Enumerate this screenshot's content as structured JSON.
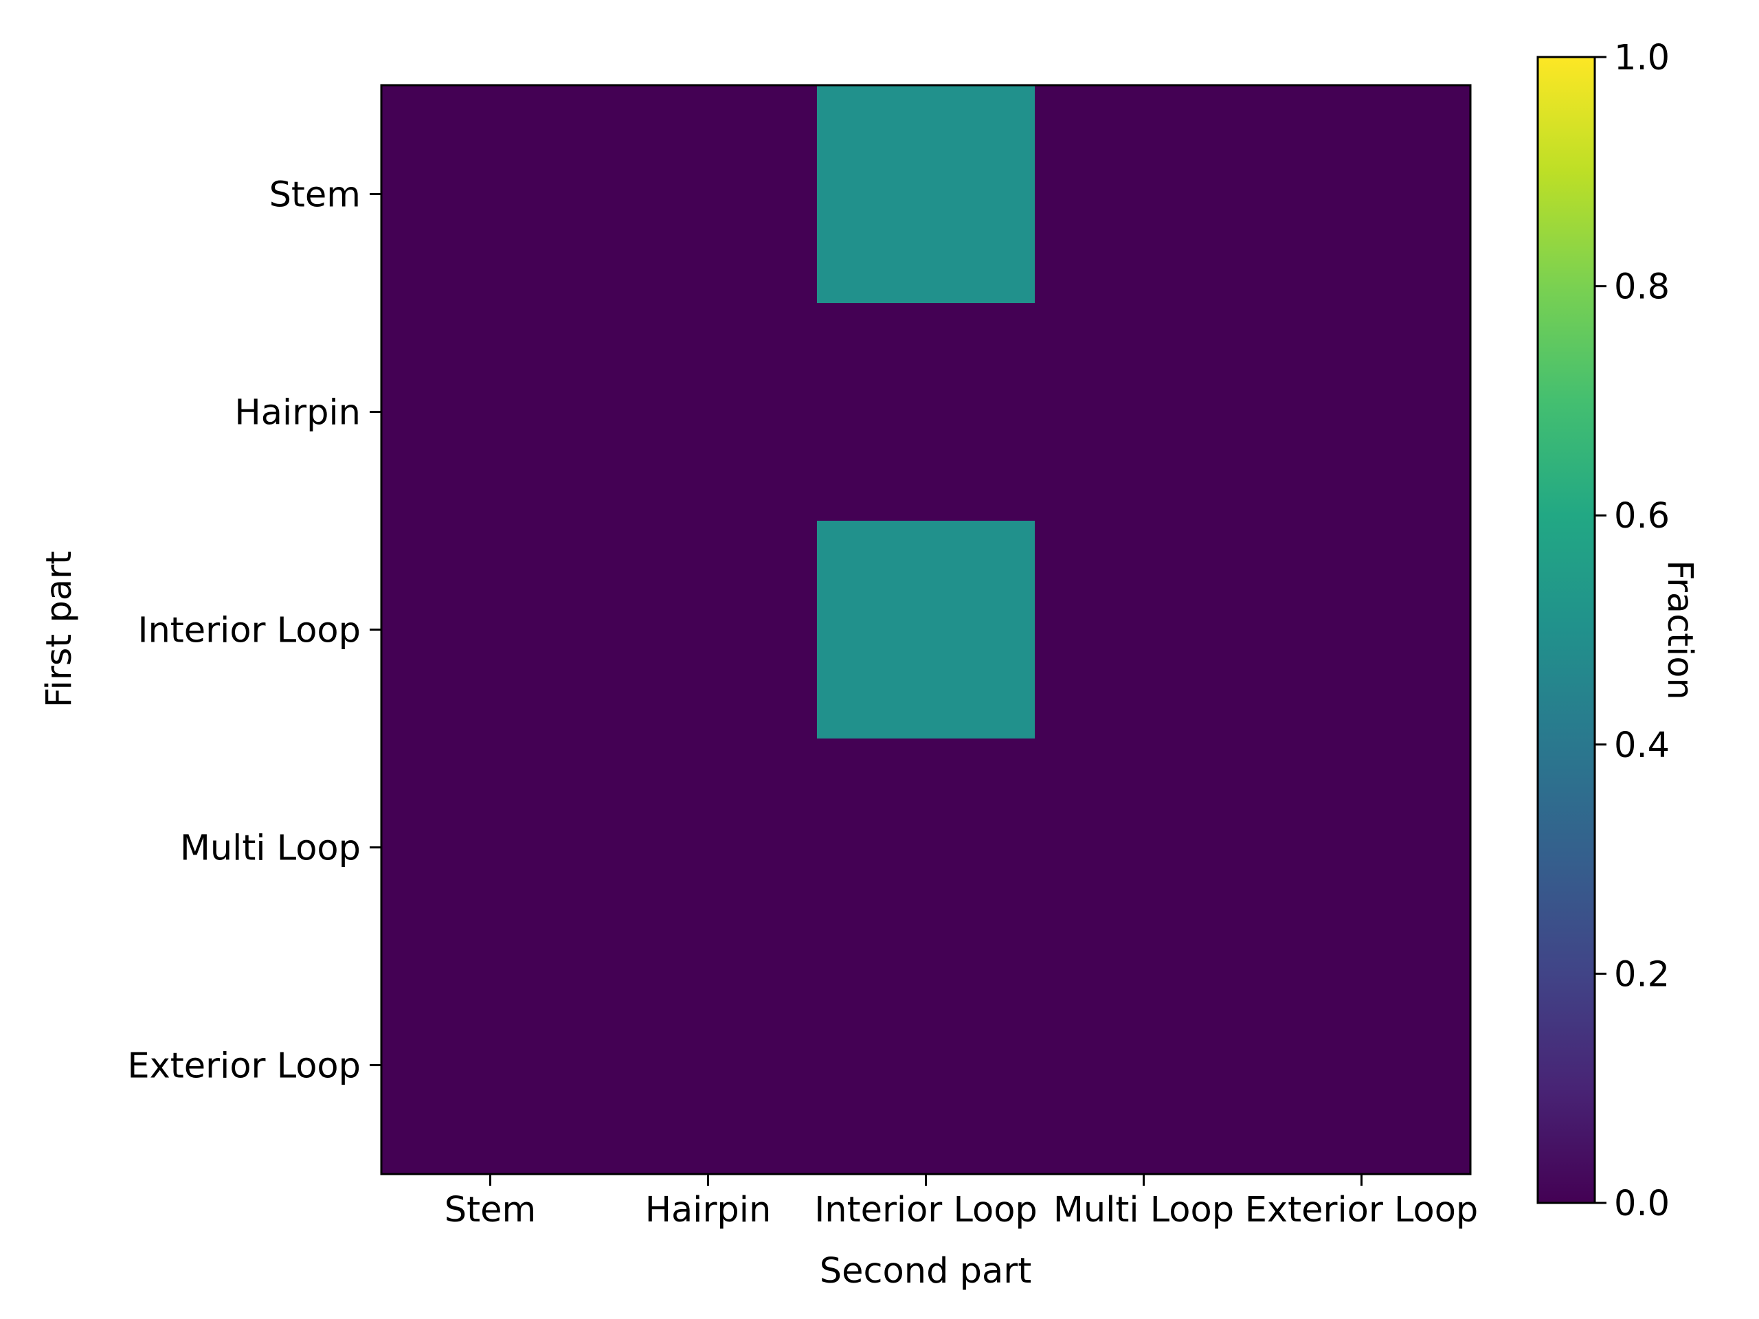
{
  "chart_data": {
    "type": "heatmap",
    "title": "",
    "xlabel": "Second part",
    "ylabel": "First part",
    "x_categories": [
      "Stem",
      "Hairpin",
      "Interior Loop",
      "Multi Loop",
      "Exterior Loop"
    ],
    "y_categories": [
      "Stem",
      "Hairpin",
      "Interior Loop",
      "Multi Loop",
      "Exterior Loop"
    ],
    "values": [
      [
        0,
        0,
        0.5,
        0,
        0
      ],
      [
        0,
        0,
        0,
        0,
        0
      ],
      [
        0,
        0,
        0.5,
        0,
        0
      ],
      [
        0,
        0,
        0,
        0,
        0
      ],
      [
        0,
        0,
        0,
        0,
        0
      ]
    ],
    "colorbar": {
      "label": "Fraction",
      "range": [
        0,
        1
      ],
      "ticks": [
        "0.0",
        "0.2",
        "0.4",
        "0.6",
        "0.8",
        "1.0"
      ],
      "colormap": "viridis"
    },
    "grid": false
  }
}
